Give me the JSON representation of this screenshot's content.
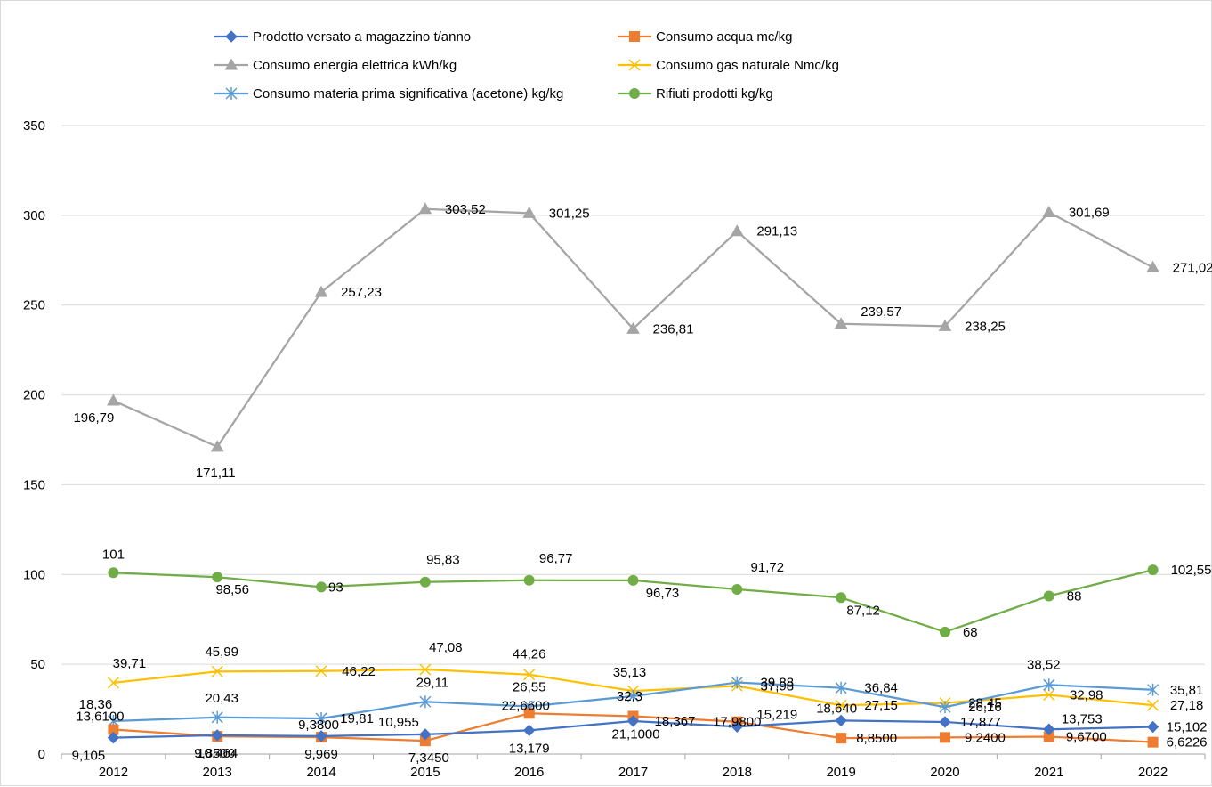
{
  "chart_data": {
    "type": "line",
    "title": "",
    "xlabel": "",
    "ylabel": "",
    "categories": [
      "2012",
      "2013",
      "2014",
      "2015",
      "2016",
      "2017",
      "2018",
      "2019",
      "2020",
      "2021",
      "2022"
    ],
    "ylim": [
      0,
      350
    ],
    "yticks": [
      0,
      50,
      100,
      150,
      200,
      250,
      300,
      350
    ],
    "grid": true,
    "legend_position": "top",
    "series": [
      {
        "name": "Prodotto versato a magazzino t/anno",
        "color": "#4472c4",
        "marker": "diamond",
        "values": [
          9.105,
          10.464,
          9.969,
          10.955,
          13.179,
          18.367,
          15.219,
          18.64,
          17.877,
          13.753,
          15.102
        ],
        "labels": [
          "9,105",
          "10,464",
          "9,969",
          "10,955",
          "13,179",
          "18,367",
          "15,219",
          "18,640",
          "17,877",
          "13,753",
          "15,102"
        ]
      },
      {
        "name": "Consumo acqua mc/kg",
        "color": "#ed7d31",
        "marker": "square",
        "values": [
          13.61,
          9.85,
          9.38,
          7.345,
          22.66,
          21.1,
          17.98,
          8.85,
          9.24,
          9.67,
          6.6226
        ],
        "labels": [
          "13,6100",
          "9,8500",
          "9,3800",
          "7,3450",
          "22,6600",
          "21,1000",
          "17,9800",
          "8,8500",
          "9,2400",
          "9,6700",
          "6,6226"
        ]
      },
      {
        "name": "Consumo energia elettrica kWh/kg",
        "color": "#a5a5a5",
        "marker": "triangle",
        "values": [
          196.79,
          171.11,
          257.23,
          303.52,
          301.25,
          236.81,
          291.13,
          239.57,
          238.25,
          301.69,
          271.02
        ],
        "labels": [
          "196,79",
          "171,11",
          "257,23",
          "303,52",
          "301,25",
          "236,81",
          "291,13",
          "239,57",
          "238,25",
          "301,69",
          "271,02"
        ]
      },
      {
        "name": "Consumo gas naturale Nmc/kg",
        "color": "#ffc000",
        "marker": "x",
        "values": [
          39.71,
          45.99,
          46.22,
          47.08,
          44.26,
          35.13,
          37.98,
          27.15,
          28.45,
          32.98,
          27.18
        ],
        "labels": [
          "39,71",
          "45,99",
          "46,22",
          "47,08",
          "44,26",
          "35,13",
          "37,98",
          "27,15",
          "28,45",
          "32,98",
          "27,18"
        ]
      },
      {
        "name": "Consumo materia prima significativa (acetone) kg/kg",
        "color": "#5b9bd5",
        "marker": "star",
        "values": [
          18.36,
          20.43,
          19.81,
          29.11,
          26.55,
          32.3,
          39.88,
          36.84,
          26.16,
          38.52,
          35.81
        ],
        "labels": [
          "18,36",
          "20,43",
          "19,81",
          "29,11",
          "26,55",
          "32,3",
          "39,88",
          "36,84",
          "26,16",
          "38,52",
          "35,81"
        ]
      },
      {
        "name": "Rifiuti prodotti kg/kg",
        "color": "#70ad47",
        "marker": "circle",
        "values": [
          101,
          98.56,
          93,
          95.83,
          96.77,
          96.73,
          91.72,
          87.12,
          68,
          88,
          102.55
        ],
        "labels": [
          "101",
          "98,56",
          "93",
          "95,83",
          "96,77",
          "96,73",
          "91,72",
          "87,12",
          "68",
          "88",
          "102,55"
        ]
      }
    ]
  }
}
